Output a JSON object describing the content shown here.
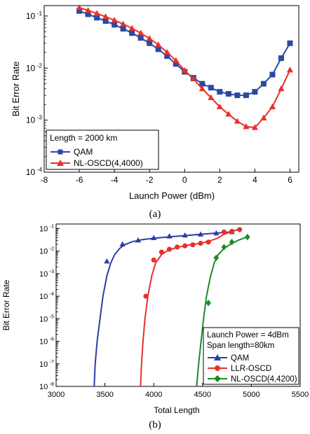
{
  "chart_data": [
    {
      "type": "line",
      "ylabel": "Bit Error Rate",
      "xlabel": "Launch Power (dBm)",
      "caption": "(a)",
      "xlim": [
        -8,
        6.5
      ],
      "ylim_log10": [
        -4,
        -0.8
      ],
      "y_scale": "log",
      "x_ticks": [
        "-8",
        "-6",
        "-4",
        "-2",
        "0",
        "2",
        "4",
        "6"
      ],
      "x_tick_values": [
        -8,
        -6,
        -4,
        -2,
        0,
        2,
        4,
        6
      ],
      "y_ticks": [
        {
          "base": "10",
          "exp": "-1",
          "value": 0.1
        },
        {
          "base": "10",
          "exp": "-2",
          "value": 0.01
        },
        {
          "base": "10",
          "exp": "-3",
          "value": 0.001
        },
        {
          "base": "10",
          "exp": "-4",
          "value": 0.0001
        }
      ],
      "legend": {
        "placement": "bottom-left",
        "header": "Length = 2000 km"
      },
      "colors": {
        "QAM": "#2a49a3",
        "NL-OSCD(4,4000)": "#e8302a"
      },
      "series": [
        {
          "name": "QAM",
          "marker": "square",
          "color": "#2a49a3",
          "x": [
            -6,
            -5.5,
            -5,
            -4.5,
            -4,
            -3.5,
            -3,
            -2.5,
            -2,
            -1.5,
            -1,
            -0.5,
            0,
            0.5,
            1,
            1.5,
            2,
            2.5,
            3,
            3.5,
            4,
            4.5,
            5,
            5.5,
            6
          ],
          "y": [
            0.125,
            0.108,
            0.093,
            0.08,
            0.068,
            0.057,
            0.047,
            0.038,
            0.03,
            0.023,
            0.017,
            0.012,
            0.0085,
            0.0065,
            0.005,
            0.0042,
            0.0035,
            0.0032,
            0.003,
            0.003,
            0.0035,
            0.005,
            0.0075,
            0.0155,
            0.03
          ]
        },
        {
          "name": "NL-OSCD(4,4000)",
          "marker": "triangle",
          "color": "#e8302a",
          "x": [
            -6,
            -5.5,
            -5,
            -4.5,
            -4,
            -3.5,
            -3,
            -2.5,
            -2,
            -1.5,
            -1,
            -0.5,
            0,
            0.5,
            1,
            1.5,
            2,
            2.5,
            3,
            3.5,
            4,
            4.5,
            5,
            5.5,
            6
          ],
          "y": [
            0.145,
            0.128,
            0.112,
            0.097,
            0.083,
            0.07,
            0.058,
            0.047,
            0.037,
            0.028,
            0.02,
            0.014,
            0.009,
            0.0062,
            0.004,
            0.0027,
            0.0018,
            0.0013,
            0.00095,
            0.00075,
            0.00072,
            0.0011,
            0.0018,
            0.004,
            0.0092
          ]
        }
      ]
    },
    {
      "type": "line",
      "ylabel": "Bit Error Rate",
      "xlabel": "Total Length",
      "caption": "(b)",
      "xlim": [
        3000,
        5500
      ],
      "ylim_log10": [
        -8,
        -0.8
      ],
      "y_scale": "log",
      "x_ticks": [
        "3000",
        "3500",
        "4000",
        "4500",
        "5000",
        "5500"
      ],
      "x_tick_values": [
        3000,
        3500,
        4000,
        4500,
        5000,
        5500
      ],
      "y_ticks": [
        {
          "base": "10",
          "exp": "-1",
          "value": 0.1
        },
        {
          "base": "10",
          "exp": "-2",
          "value": 0.01
        },
        {
          "base": "10",
          "exp": "-3",
          "value": 0.001
        },
        {
          "base": "10",
          "exp": "-4",
          "value": 0.0001
        },
        {
          "base": "10",
          "exp": "-5",
          "value": 1e-05
        },
        {
          "base": "10",
          "exp": "-6",
          "value": 1e-06
        },
        {
          "base": "10",
          "exp": "-7",
          "value": 1e-07
        },
        {
          "base": "10",
          "exp": "-8",
          "value": 1e-08
        }
      ],
      "legend": {
        "placement": "bottom-right",
        "header_lines": [
          "Launch Power = 4dBm",
          "Span length=80km"
        ]
      },
      "series": [
        {
          "name": "QAM",
          "marker": "triangle",
          "color": "#2a3ea8",
          "x": [
            3520,
            3680,
            3840,
            4000,
            4160,
            4320,
            4480,
            4640,
            4800
          ],
          "y": [
            0.0035,
            0.02,
            0.03,
            0.038,
            0.045,
            0.05,
            0.055,
            0.062,
            0.07
          ],
          "fit_x": [
            3390,
            3400,
            3420,
            3450,
            3480,
            3520,
            3560,
            3600,
            3650,
            3700,
            3780,
            3880,
            4000,
            4200,
            4400,
            4600,
            4800
          ],
          "fit_y": [
            1e-08,
            1e-07,
            1e-06,
            1e-05,
            0.0001,
            0.0008,
            0.003,
            0.007,
            0.013,
            0.019,
            0.026,
            0.032,
            0.037,
            0.044,
            0.052,
            0.061,
            0.071
          ]
        },
        {
          "name": "LLR-OSCD",
          "marker": "circle",
          "color": "#e8302a",
          "x": [
            3920,
            4000,
            4080,
            4160,
            4240,
            4320,
            4400,
            4480,
            4560,
            4720,
            4800,
            4880
          ],
          "y": [
            0.0001,
            0.004,
            0.009,
            0.012,
            0.015,
            0.017,
            0.019,
            0.022,
            0.025,
            0.07,
            0.075,
            0.09
          ],
          "fit_x": [
            3865,
            3875,
            3890,
            3910,
            3940,
            3980,
            4020,
            4080,
            4150,
            4250,
            4350,
            4450,
            4550,
            4650,
            4720,
            4800,
            4880
          ],
          "fit_y": [
            1e-08,
            1e-07,
            1e-06,
            1e-05,
            0.0001,
            0.0008,
            0.003,
            0.007,
            0.011,
            0.015,
            0.018,
            0.021,
            0.026,
            0.037,
            0.055,
            0.075,
            0.095
          ]
        },
        {
          "name": "NL-OSCD(4,4200)",
          "marker": "diamond",
          "color": "#1c8a26",
          "x": [
            4560,
            4640,
            4720,
            4800,
            4960
          ],
          "y": [
            5e-05,
            0.005,
            0.015,
            0.025,
            0.042
          ],
          "fit_x": [
            4440,
            4460,
            4485,
            4510,
            4540,
            4580,
            4620,
            4660,
            4720,
            4800,
            4880,
            4960
          ],
          "fit_y": [
            1e-08,
            1e-07,
            1e-06,
            1e-05,
            0.0001,
            0.0007,
            0.003,
            0.007,
            0.013,
            0.022,
            0.032,
            0.043
          ]
        }
      ]
    }
  ]
}
